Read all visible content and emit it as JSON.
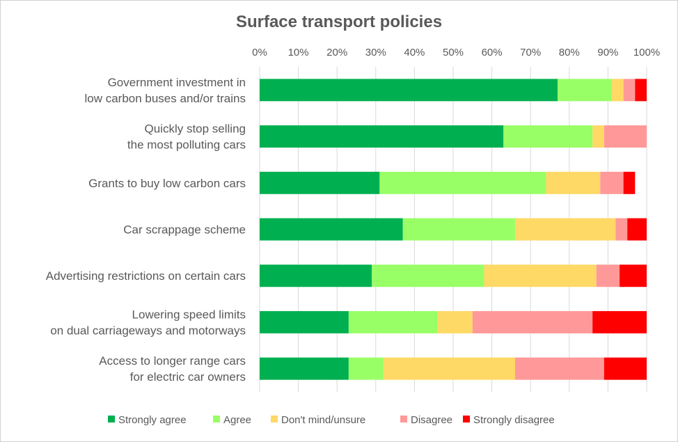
{
  "chart_data": {
    "type": "bar",
    "orientation": "horizontal",
    "stacked": true,
    "title": "Surface transport policies",
    "xlabel": "",
    "ylabel": "",
    "xlim": [
      0,
      100
    ],
    "x_ticks": [
      "0%",
      "10%",
      "20%",
      "30%",
      "40%",
      "50%",
      "60%",
      "70%",
      "80%",
      "90%",
      "100%"
    ],
    "grid": true,
    "legend_position": "bottom",
    "categories": [
      [
        "Government investment in",
        "low carbon buses and/or trains"
      ],
      [
        "Quickly stop selling",
        "the most polluting cars"
      ],
      [
        "Grants to buy low carbon cars"
      ],
      [
        "Car scrappage scheme"
      ],
      [
        "Advertising restrictions on certain cars"
      ],
      [
        "Lowering speed limits",
        "on dual carriageways and motorways"
      ],
      [
        "Access to longer range cars",
        "for electric car owners"
      ]
    ],
    "series": [
      {
        "name": "Strongly agree",
        "color": "#00b050",
        "values": [
          77,
          63,
          31,
          37,
          29,
          23,
          23
        ]
      },
      {
        "name": "Agree",
        "color": "#99ff66",
        "values": [
          14,
          23,
          43,
          29,
          29,
          23,
          9
        ]
      },
      {
        "name": "Don't mind/unsure",
        "color": "#ffd966",
        "values": [
          3,
          3,
          14,
          26,
          29,
          9,
          34
        ]
      },
      {
        "name": "Disagree",
        "color": "#ff9999",
        "values": [
          3,
          11,
          6,
          3,
          6,
          31,
          23
        ]
      },
      {
        "name": "Strongly disagree",
        "color": "#ff0000",
        "values": [
          3,
          0,
          3,
          5,
          7,
          14,
          11
        ]
      }
    ]
  }
}
